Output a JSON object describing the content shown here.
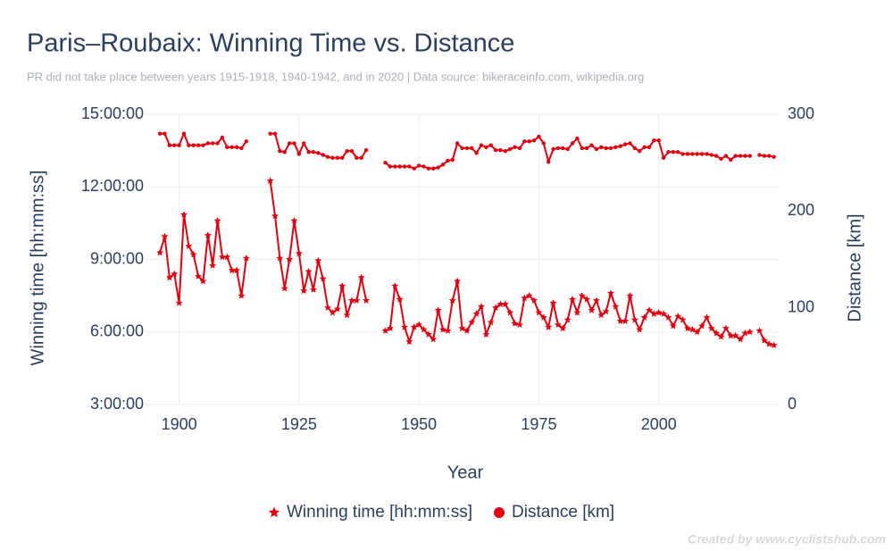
{
  "chart_data": {
    "type": "line",
    "title": "Paris–Roubaix: Winning Time vs. Distance",
    "subtitle": "PR did not take place between years 1915-1918, 1940-1942, and in 2020 | Data source: bikeraceinfo.com, wikipedia.org",
    "xlabel": "Year",
    "ylabel": "Winning time [hh:mm:ss]",
    "y2label": "Distance [km]",
    "watermark": "Created by www.cyclistshub.com",
    "xlim": [
      1893,
      2025
    ],
    "xticks": [
      1900,
      1925,
      1950,
      1975,
      2000
    ],
    "ylim": [
      3,
      15
    ],
    "yticks": [
      {
        "value": 3,
        "label": "3:00:00"
      },
      {
        "value": 6,
        "label": "6:00:00"
      },
      {
        "value": 9,
        "label": "9:00:00"
      },
      {
        "value": 12,
        "label": "12:00:00"
      },
      {
        "value": 15,
        "label": "15:00:00"
      }
    ],
    "y2lim": [
      0,
      300
    ],
    "y2ticks": [
      0,
      100,
      200,
      300
    ],
    "grid": true,
    "legend": "bottom",
    "x": [
      1896,
      1897,
      1898,
      1899,
      1900,
      1901,
      1902,
      1903,
      1904,
      1905,
      1906,
      1907,
      1908,
      1909,
      1910,
      1911,
      1912,
      1913,
      1914,
      1915,
      1916,
      1917,
      1918,
      1919,
      1920,
      1921,
      1922,
      1923,
      1924,
      1925,
      1926,
      1927,
      1928,
      1929,
      1930,
      1931,
      1932,
      1933,
      1934,
      1935,
      1936,
      1937,
      1938,
      1939,
      1940,
      1941,
      1942,
      1943,
      1944,
      1945,
      1946,
      1947,
      1948,
      1949,
      1950,
      1951,
      1952,
      1953,
      1954,
      1955,
      1956,
      1957,
      1958,
      1959,
      1960,
      1961,
      1962,
      1963,
      1964,
      1965,
      1966,
      1967,
      1968,
      1969,
      1970,
      1971,
      1972,
      1973,
      1974,
      1975,
      1976,
      1977,
      1978,
      1979,
      1980,
      1981,
      1982,
      1983,
      1984,
      1985,
      1986,
      1987,
      1988,
      1989,
      1990,
      1991,
      1992,
      1993,
      1994,
      1995,
      1996,
      1997,
      1998,
      1999,
      2000,
      2001,
      2002,
      2003,
      2004,
      2005,
      2006,
      2007,
      2008,
      2009,
      2010,
      2011,
      2012,
      2013,
      2014,
      2015,
      2016,
      2017,
      2018,
      2019,
      2020,
      2021,
      2022,
      2023,
      2024
    ],
    "series": [
      {
        "name": "Winning time [hh:mm:ss]",
        "color": "#e3000f",
        "marker": "star",
        "values": [
          9.28,
          9.95,
          8.25,
          8.4,
          7.2,
          10.85,
          9.55,
          9.2,
          8.3,
          8.1,
          10.0,
          8.75,
          10.6,
          9.1,
          9.1,
          8.55,
          8.55,
          7.5,
          9.05,
          null,
          null,
          null,
          null,
          12.25,
          10.8,
          9.05,
          7.8,
          9.0,
          10.6,
          9.25,
          7.7,
          8.5,
          7.75,
          8.95,
          8.2,
          7.0,
          6.8,
          6.95,
          7.9,
          6.7,
          7.3,
          7.3,
          8.25,
          7.3,
          null,
          null,
          null,
          6.05,
          6.15,
          7.9,
          7.35,
          6.2,
          5.6,
          6.2,
          6.3,
          6.1,
          5.9,
          5.7,
          6.9,
          6.1,
          6.05,
          7.3,
          8.1,
          6.15,
          6.05,
          6.4,
          6.75,
          7.05,
          5.9,
          6.4,
          7.0,
          7.15,
          7.15,
          6.8,
          6.35,
          6.3,
          7.4,
          7.5,
          7.3,
          6.8,
          6.6,
          6.2,
          7.2,
          6.3,
          6.15,
          6.5,
          7.35,
          6.8,
          7.5,
          7.35,
          6.9,
          7.3,
          6.7,
          6.85,
          7.6,
          7.05,
          6.45,
          6.45,
          7.5,
          6.5,
          6.1,
          6.6,
          6.9,
          6.75,
          6.8,
          6.75,
          6.6,
          6.25,
          6.65,
          6.5,
          6.15,
          6.1,
          6.0,
          6.25,
          6.6,
          6.15,
          5.95,
          5.8,
          6.15,
          5.85,
          5.85,
          5.7,
          5.95,
          6.0,
          null,
          6.05,
          5.65,
          5.5,
          5.45
        ]
      },
      {
        "name": "Distance [km]",
        "color": "#e3000f",
        "marker": "circle",
        "axis": "y2",
        "values": [
          280,
          280,
          268,
          268,
          268,
          280,
          268,
          268,
          268,
          268,
          270,
          270,
          270,
          276,
          266,
          266,
          266,
          265,
          272,
          null,
          null,
          null,
          null,
          280,
          280,
          262,
          261,
          270,
          270,
          259,
          270,
          261,
          261,
          260,
          258,
          256,
          255,
          255,
          255,
          262,
          262,
          255,
          255,
          263,
          null,
          null,
          null,
          250,
          246,
          246,
          246,
          246,
          246,
          244,
          247,
          246,
          244,
          244,
          245,
          248,
          252,
          253,
          270,
          265,
          265,
          265,
          260,
          268,
          266,
          268,
          263,
          263,
          262,
          264,
          266,
          265,
          272,
          272,
          273,
          277,
          270,
          251,
          264,
          265,
          265,
          264,
          270,
          275,
          265,
          265,
          268,
          264,
          266,
          265,
          265,
          266,
          267,
          269,
          270,
          265,
          262,
          266,
          266,
          273,
          273,
          255,
          261,
          261,
          261,
          259,
          259,
          259,
          259,
          259,
          259,
          258,
          257,
          254,
          257,
          253,
          257,
          257,
          257,
          257,
          null,
          258,
          257,
          257,
          256
        ]
      }
    ]
  }
}
